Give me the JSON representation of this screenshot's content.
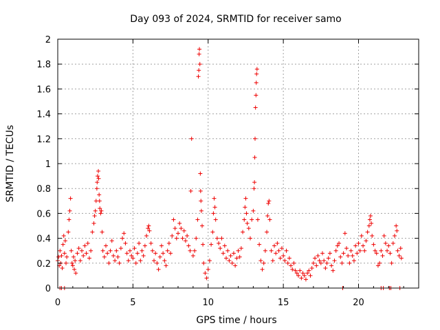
{
  "chart_data": {
    "type": "scatter",
    "title": "Day 093 of 2024, SRMTID for receiver samo",
    "xlabel": "GPS time / hours",
    "ylabel": "SRMTID / TECUs",
    "xlim": [
      0,
      24
    ],
    "ylim": [
      0,
      2
    ],
    "xticks": [
      0,
      5,
      10,
      15,
      20
    ],
    "xtick_labels": [
      "0",
      "5",
      "10",
      "15",
      "20"
    ],
    "yticks": [
      0,
      0.2,
      0.4,
      0.6,
      0.8,
      1,
      1.2,
      1.4,
      1.6,
      1.8,
      2
    ],
    "ytick_labels": [
      "0",
      "0.2",
      "0.4",
      "0.6",
      "0.8",
      "1",
      "1.2",
      "1.4",
      "1.6",
      "1.8",
      "2"
    ],
    "grid": true,
    "marker": "+",
    "series_color": "#ee0000",
    "points": [
      [
        0.0,
        0.22
      ],
      [
        0.05,
        0.25
      ],
      [
        0.1,
        0.18
      ],
      [
        0.15,
        0.3
      ],
      [
        0.2,
        0.2
      ],
      [
        0.25,
        0.26
      ],
      [
        0.3,
        0.16
      ],
      [
        0.35,
        0.35
      ],
      [
        0.4,
        0.42
      ],
      [
        0.45,
        0.28
      ],
      [
        0.5,
        0.38
      ],
      [
        0.55,
        0.2
      ],
      [
        0.6,
        0.25
      ],
      [
        0.7,
        0.45
      ],
      [
        0.75,
        0.55
      ],
      [
        0.8,
        0.62
      ],
      [
        0.85,
        0.72
      ],
      [
        0.9,
        0.3
      ],
      [
        0.95,
        0.2
      ],
      [
        1.0,
        0.18
      ],
      [
        1.05,
        0.25
      ],
      [
        1.1,
        0.15
      ],
      [
        1.15,
        0.22
      ],
      [
        1.2,
        0.12
      ],
      [
        1.3,
        0.28
      ],
      [
        1.4,
        0.32
      ],
      [
        1.5,
        0.22
      ],
      [
        1.6,
        0.3
      ],
      [
        1.7,
        0.26
      ],
      [
        1.8,
        0.34
      ],
      [
        1.9,
        0.28
      ],
      [
        2.0,
        0.36
      ],
      [
        2.1,
        0.24
      ],
      [
        2.2,
        0.3
      ],
      [
        2.3,
        0.45
      ],
      [
        2.4,
        0.52
      ],
      [
        2.45,
        0.58
      ],
      [
        2.5,
        0.62
      ],
      [
        2.55,
        0.7
      ],
      [
        2.6,
        0.8
      ],
      [
        2.62,
        0.85
      ],
      [
        2.65,
        0.9
      ],
      [
        2.7,
        0.94
      ],
      [
        2.72,
        0.88
      ],
      [
        2.75,
        0.75
      ],
      [
        2.78,
        0.7
      ],
      [
        2.8,
        0.64
      ],
      [
        2.85,
        0.6
      ],
      [
        2.9,
        0.62
      ],
      [
        2.95,
        0.45
      ],
      [
        3.0,
        0.3
      ],
      [
        3.1,
        0.25
      ],
      [
        3.2,
        0.34
      ],
      [
        3.3,
        0.28
      ],
      [
        3.4,
        0.2
      ],
      [
        3.5,
        0.3
      ],
      [
        3.6,
        0.38
      ],
      [
        3.7,
        0.26
      ],
      [
        3.8,
        0.22
      ],
      [
        3.9,
        0.3
      ],
      [
        4.0,
        0.25
      ],
      [
        4.1,
        0.2
      ],
      [
        4.2,
        0.32
      ],
      [
        4.3,
        0.4
      ],
      [
        4.4,
        0.44
      ],
      [
        4.5,
        0.36
      ],
      [
        4.6,
        0.28
      ],
      [
        4.7,
        0.22
      ],
      [
        4.8,
        0.3
      ],
      [
        4.9,
        0.26
      ],
      [
        5.0,
        0.24
      ],
      [
        5.1,
        0.32
      ],
      [
        5.2,
        0.2
      ],
      [
        5.3,
        0.28
      ],
      [
        5.4,
        0.36
      ],
      [
        5.5,
        0.22
      ],
      [
        5.6,
        0.3
      ],
      [
        5.7,
        0.26
      ],
      [
        5.8,
        0.34
      ],
      [
        5.9,
        0.42
      ],
      [
        6.0,
        0.48
      ],
      [
        6.05,
        0.5
      ],
      [
        6.1,
        0.46
      ],
      [
        6.2,
        0.36
      ],
      [
        6.3,
        0.3
      ],
      [
        6.4,
        0.22
      ],
      [
        6.5,
        0.28
      ],
      [
        6.6,
        0.2
      ],
      [
        6.7,
        0.15
      ],
      [
        6.8,
        0.25
      ],
      [
        6.9,
        0.34
      ],
      [
        7.0,
        0.28
      ],
      [
        7.1,
        0.22
      ],
      [
        7.2,
        0.18
      ],
      [
        7.3,
        0.3
      ],
      [
        7.4,
        0.36
      ],
      [
        7.5,
        0.28
      ],
      [
        7.6,
        0.42
      ],
      [
        7.7,
        0.55
      ],
      [
        7.8,
        0.48
      ],
      [
        7.9,
        0.4
      ],
      [
        8.0,
        0.44
      ],
      [
        8.1,
        0.52
      ],
      [
        8.2,
        0.48
      ],
      [
        8.3,
        0.4
      ],
      [
        8.4,
        0.46
      ],
      [
        8.5,
        0.38
      ],
      [
        8.6,
        0.42
      ],
      [
        8.7,
        0.34
      ],
      [
        8.8,
        0.3
      ],
      [
        8.85,
        0.78
      ],
      [
        8.9,
        1.2
      ],
      [
        9.0,
        0.26
      ],
      [
        9.1,
        0.3
      ],
      [
        9.2,
        0.4
      ],
      [
        9.3,
        0.55
      ],
      [
        9.35,
        1.7
      ],
      [
        9.38,
        1.75
      ],
      [
        9.4,
        1.88
      ],
      [
        9.42,
        1.92
      ],
      [
        9.45,
        1.8
      ],
      [
        9.48,
        0.92
      ],
      [
        9.5,
        0.78
      ],
      [
        9.52,
        0.7
      ],
      [
        9.55,
        0.62
      ],
      [
        9.6,
        0.5
      ],
      [
        9.65,
        0.35
      ],
      [
        9.7,
        0.2
      ],
      [
        9.8,
        0.12
      ],
      [
        9.9,
        0.08
      ],
      [
        10.0,
        0.15
      ],
      [
        10.1,
        0.22
      ],
      [
        10.2,
        0.35
      ],
      [
        10.3,
        0.45
      ],
      [
        10.35,
        0.6
      ],
      [
        10.4,
        0.72
      ],
      [
        10.45,
        0.65
      ],
      [
        10.5,
        0.55
      ],
      [
        10.6,
        0.4
      ],
      [
        10.7,
        0.36
      ],
      [
        10.8,
        0.32
      ],
      [
        10.9,
        0.4
      ],
      [
        11.0,
        0.28
      ],
      [
        11.1,
        0.34
      ],
      [
        11.2,
        0.24
      ],
      [
        11.3,
        0.3
      ],
      [
        11.4,
        0.22
      ],
      [
        11.5,
        0.26
      ],
      [
        11.6,
        0.2
      ],
      [
        11.7,
        0.28
      ],
      [
        11.8,
        0.18
      ],
      [
        11.9,
        0.24
      ],
      [
        12.0,
        0.3
      ],
      [
        12.1,
        0.25
      ],
      [
        12.2,
        0.32
      ],
      [
        12.3,
        0.45
      ],
      [
        12.4,
        0.55
      ],
      [
        12.45,
        0.65
      ],
      [
        12.5,
        0.72
      ],
      [
        12.55,
        0.6
      ],
      [
        12.6,
        0.52
      ],
      [
        12.7,
        0.48
      ],
      [
        12.8,
        0.4
      ],
      [
        12.9,
        0.55
      ],
      [
        13.0,
        0.62
      ],
      [
        13.05,
        0.8
      ],
      [
        13.08,
        0.85
      ],
      [
        13.1,
        1.05
      ],
      [
        13.12,
        1.2
      ],
      [
        13.15,
        1.45
      ],
      [
        13.18,
        1.55
      ],
      [
        13.2,
        1.65
      ],
      [
        13.22,
        1.72
      ],
      [
        13.25,
        1.76
      ],
      [
        13.3,
        0.55
      ],
      [
        13.4,
        0.35
      ],
      [
        13.5,
        0.22
      ],
      [
        13.6,
        0.15
      ],
      [
        13.7,
        0.2
      ],
      [
        13.8,
        0.3
      ],
      [
        13.9,
        0.45
      ],
      [
        13.95,
        0.58
      ],
      [
        14.0,
        0.68
      ],
      [
        14.05,
        0.7
      ],
      [
        14.1,
        0.55
      ],
      [
        14.2,
        0.3
      ],
      [
        14.3,
        0.22
      ],
      [
        14.4,
        0.34
      ],
      [
        14.5,
        0.28
      ],
      [
        14.6,
        0.36
      ],
      [
        14.7,
        0.3
      ],
      [
        14.8,
        0.24
      ],
      [
        14.9,
        0.32
      ],
      [
        15.0,
        0.26
      ],
      [
        15.1,
        0.22
      ],
      [
        15.2,
        0.3
      ],
      [
        15.3,
        0.2
      ],
      [
        15.4,
        0.24
      ],
      [
        15.5,
        0.18
      ],
      [
        15.6,
        0.15
      ],
      [
        15.7,
        0.2
      ],
      [
        15.8,
        0.14
      ],
      [
        15.9,
        0.12
      ],
      [
        16.0,
        0.1
      ],
      [
        16.1,
        0.14
      ],
      [
        16.2,
        0.08
      ],
      [
        16.3,
        0.12
      ],
      [
        16.4,
        0.1
      ],
      [
        16.5,
        0.07
      ],
      [
        16.6,
        0.12
      ],
      [
        16.7,
        0.14
      ],
      [
        16.8,
        0.1
      ],
      [
        16.9,
        0.16
      ],
      [
        17.0,
        0.2
      ],
      [
        17.1,
        0.24
      ],
      [
        17.2,
        0.18
      ],
      [
        17.3,
        0.26
      ],
      [
        17.4,
        0.22
      ],
      [
        17.5,
        0.2
      ],
      [
        17.6,
        0.28
      ],
      [
        17.7,
        0.22
      ],
      [
        17.8,
        0.16
      ],
      [
        17.9,
        0.2
      ],
      [
        18.0,
        0.24
      ],
      [
        18.1,
        0.28
      ],
      [
        18.2,
        0.18
      ],
      [
        18.3,
        0.14
      ],
      [
        18.4,
        0.22
      ],
      [
        18.5,
        0.3
      ],
      [
        18.6,
        0.34
      ],
      [
        18.7,
        0.36
      ],
      [
        18.8,
        0.25
      ],
      [
        18.9,
        0.2
      ],
      [
        19.0,
        0.28
      ],
      [
        19.1,
        0.44
      ],
      [
        19.2,
        0.32
      ],
      [
        19.3,
        0.26
      ],
      [
        19.4,
        0.2
      ],
      [
        19.5,
        0.3
      ],
      [
        19.6,
        0.26
      ],
      [
        19.7,
        0.22
      ],
      [
        19.8,
        0.34
      ],
      [
        19.9,
        0.28
      ],
      [
        20.0,
        0.36
      ],
      [
        20.1,
        0.3
      ],
      [
        20.2,
        0.42
      ],
      [
        20.3,
        0.34
      ],
      [
        20.4,
        0.3
      ],
      [
        20.5,
        0.38
      ],
      [
        20.6,
        0.45
      ],
      [
        20.7,
        0.5
      ],
      [
        20.75,
        0.55
      ],
      [
        20.8,
        0.58
      ],
      [
        20.85,
        0.52
      ],
      [
        20.9,
        0.42
      ],
      [
        21.0,
        0.35
      ],
      [
        21.1,
        0.3
      ],
      [
        21.2,
        0.28
      ],
      [
        21.3,
        0.18
      ],
      [
        21.4,
        0.2
      ],
      [
        21.5,
        0.3
      ],
      [
        21.6,
        0.26
      ],
      [
        21.7,
        0.42
      ],
      [
        21.8,
        0.36
      ],
      [
        21.9,
        0.3
      ],
      [
        22.0,
        0.34
      ],
      [
        22.1,
        0.28
      ],
      [
        22.2,
        0.2
      ],
      [
        22.3,
        0.36
      ],
      [
        22.4,
        0.42
      ],
      [
        22.5,
        0.5
      ],
      [
        22.55,
        0.46
      ],
      [
        22.6,
        0.3
      ],
      [
        22.7,
        0.26
      ],
      [
        22.8,
        0.32
      ],
      [
        22.85,
        0.24
      ],
      [
        0.15,
        0.0
      ],
      [
        0.25,
        0.0
      ],
      [
        0.45,
        0.0
      ],
      [
        18.95,
        0.0
      ],
      [
        21.5,
        0.0
      ],
      [
        21.65,
        0.0
      ],
      [
        22.05,
        0.0
      ],
      [
        22.15,
        0.0
      ],
      [
        22.75,
        0.0
      ]
    ]
  }
}
